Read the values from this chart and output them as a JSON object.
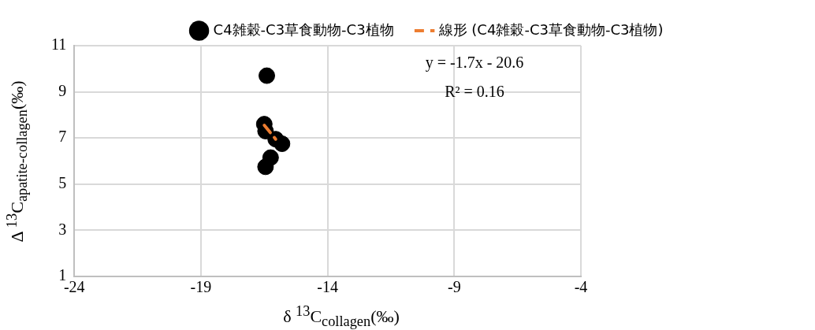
{
  "chart_data": {
    "type": "scatter",
    "xlabel": "δ $^{13}$C$_{collagen}$(‰)",
    "ylabel": "Δ $^{13}$C$_{apatite-collagen}$(‰)",
    "series": [
      {
        "name": "C4雑穀-C3草食動物-C3植物",
        "type": "scatter",
        "color": "#000000",
        "marker": "circle",
        "x": [
          -16.4,
          -16.5,
          -16.45,
          -16.05,
          -15.8,
          -16.25,
          -16.45
        ],
        "values": [
          9.7,
          7.6,
          7.3,
          6.95,
          6.75,
          6.15,
          5.75
        ]
      },
      {
        "name": "線形 (C4雑穀-C3草食動物-C3植物)",
        "type": "line",
        "color": "#ed7d31",
        "line_style": "dashed",
        "marker": "none",
        "x": [
          -16.5,
          -16.05
        ],
        "values": [
          7.55,
          6.95
        ]
      }
    ],
    "xlim": [
      -24,
      -4
    ],
    "xticks": [
      -24,
      -19,
      -14,
      -9,
      -4
    ],
    "ylim": [
      1,
      11
    ],
    "yticks": [
      1,
      3,
      5,
      7,
      9,
      11
    ],
    "grid": true,
    "legend": "top",
    "annotations": [
      "y = -1.7x - 20.6",
      "R² = 0.16"
    ]
  }
}
